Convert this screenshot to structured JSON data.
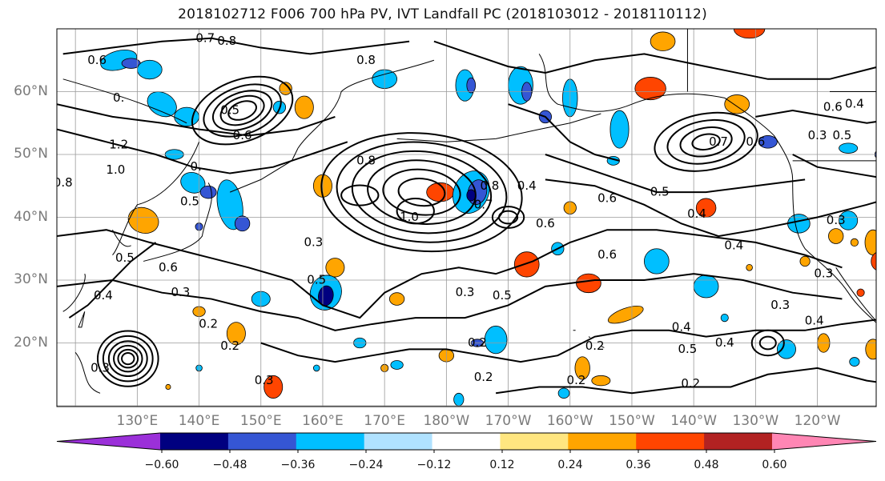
{
  "title": "2018102712 F006 700 hPa PV, IVT Landfall PC (2018103012 - 2018110112)",
  "lat_labels": [
    "60°N",
    "50°N",
    "40°N",
    "30°N",
    "20°N"
  ],
  "lon_labels": [
    "130°E",
    "140°E",
    "150°E",
    "160°E",
    "170°E",
    "180°W",
    "170°W",
    "160°W",
    "150°W",
    "140°W",
    "130°W",
    "120°W"
  ],
  "colorbar": {
    "tick_labels": [
      "−0.60",
      "−0.48",
      "−0.36",
      "−0.24",
      "−0.12",
      "0.12",
      "0.24",
      "0.36",
      "0.48",
      "0.60"
    ],
    "colors": [
      "#9b30d9",
      "#000080",
      "#3556d4",
      "#00bfff",
      "#b0e2ff",
      "#ffffff",
      "#ffe680",
      "#ffa500",
      "#ff4500",
      "#b22222",
      "#ff86b4"
    ]
  },
  "contour_labels": [
    {
      "t": "0.7",
      "lon": 141,
      "lat": 68.5
    },
    {
      "t": "0.8",
      "lon": 144.5,
      "lat": 68
    },
    {
      "t": "0.6",
      "lon": 123.5,
      "lat": 65
    },
    {
      "t": "0.",
      "lon": 127,
      "lat": 59
    },
    {
      "t": "0.5",
      "lon": 145,
      "lat": 57
    },
    {
      "t": "0.6",
      "lon": 147,
      "lat": 53
    },
    {
      "t": "1.2",
      "lon": 127,
      "lat": 51.5
    },
    {
      "t": "1.0",
      "lon": 126.5,
      "lat": 47.5
    },
    {
      "t": "0.8",
      "lon": 118,
      "lat": 45.5
    },
    {
      "t": "0.",
      "lon": 139.5,
      "lat": 48
    },
    {
      "t": "0.8",
      "lon": 167,
      "lat": 65
    },
    {
      "t": "0.8",
      "lon": 167,
      "lat": 49
    },
    {
      "t": "0.8",
      "lon": 187,
      "lat": 45
    },
    {
      "t": "0.7",
      "lon": 186,
      "lat": 42
    },
    {
      "t": "1.0",
      "lon": 174,
      "lat": 40
    },
    {
      "t": "0.4",
      "lon": 193,
      "lat": 45
    },
    {
      "t": "0.6",
      "lon": 196,
      "lat": 39
    },
    {
      "t": "0.6",
      "lon": 206,
      "lat": 43
    },
    {
      "t": "0.5",
      "lon": 214.5,
      "lat": 44
    },
    {
      "t": "0.4",
      "lon": 220.5,
      "lat": 40.5
    },
    {
      "t": "0.6",
      "lon": 206,
      "lat": 34
    },
    {
      "t": "0.4",
      "lon": 226.5,
      "lat": 35.5
    },
    {
      "t": "0.7",
      "lon": 224,
      "lat": 52
    },
    {
      "t": "0.6",
      "lon": 230,
      "lat": 52
    },
    {
      "t": "0.3",
      "lon": 240,
      "lat": 53
    },
    {
      "t": "0.5",
      "lon": 244,
      "lat": 53
    },
    {
      "t": "0.6",
      "lon": 242.5,
      "lat": 57.5
    },
    {
      "t": "0.4",
      "lon": 246,
      "lat": 58
    },
    {
      "t": "0.3",
      "lon": 243,
      "lat": 39.5
    },
    {
      "t": "0.5",
      "lon": 138.5,
      "lat": 42.5
    },
    {
      "t": "0.5",
      "lon": 128,
      "lat": 33.5
    },
    {
      "t": "0.6",
      "lon": 135,
      "lat": 32
    },
    {
      "t": "0.3",
      "lon": 137,
      "lat": 28
    },
    {
      "t": "0.4",
      "lon": 124.5,
      "lat": 27.5
    },
    {
      "t": "0.3",
      "lon": 158.5,
      "lat": 36
    },
    {
      "t": "0.5",
      "lon": 159,
      "lat": 30
    },
    {
      "t": "0.5",
      "lon": 189,
      "lat": 27.5
    },
    {
      "t": "0.3",
      "lon": 183,
      "lat": 28
    },
    {
      "t": "0.2",
      "lon": 141.5,
      "lat": 23
    },
    {
      "t": "0.2",
      "lon": 145,
      "lat": 19.5
    },
    {
      "t": "0.3",
      "lon": 150.5,
      "lat": 14
    },
    {
      "t": "0.2",
      "lon": 185,
      "lat": 20
    },
    {
      "t": "0.2",
      "lon": 186,
      "lat": 14.5
    },
    {
      "t": "0.2",
      "lon": 204,
      "lat": 19.5
    },
    {
      "t": "0.2",
      "lon": 201,
      "lat": 14
    },
    {
      "t": "0.4",
      "lon": 218,
      "lat": 22.5
    },
    {
      "t": "0.5",
      "lon": 219,
      "lat": 19
    },
    {
      "t": "0.4",
      "lon": 225,
      "lat": 20
    },
    {
      "t": "0.2",
      "lon": 219.5,
      "lat": 13.5
    },
    {
      "t": "0.3",
      "lon": 234,
      "lat": 26
    },
    {
      "t": "0.4",
      "lon": 239.5,
      "lat": 23.5
    },
    {
      "t": "0.3",
      "lon": 241,
      "lat": 31
    },
    {
      "t": "0.3",
      "lon": 124,
      "lat": 16
    }
  ]
}
